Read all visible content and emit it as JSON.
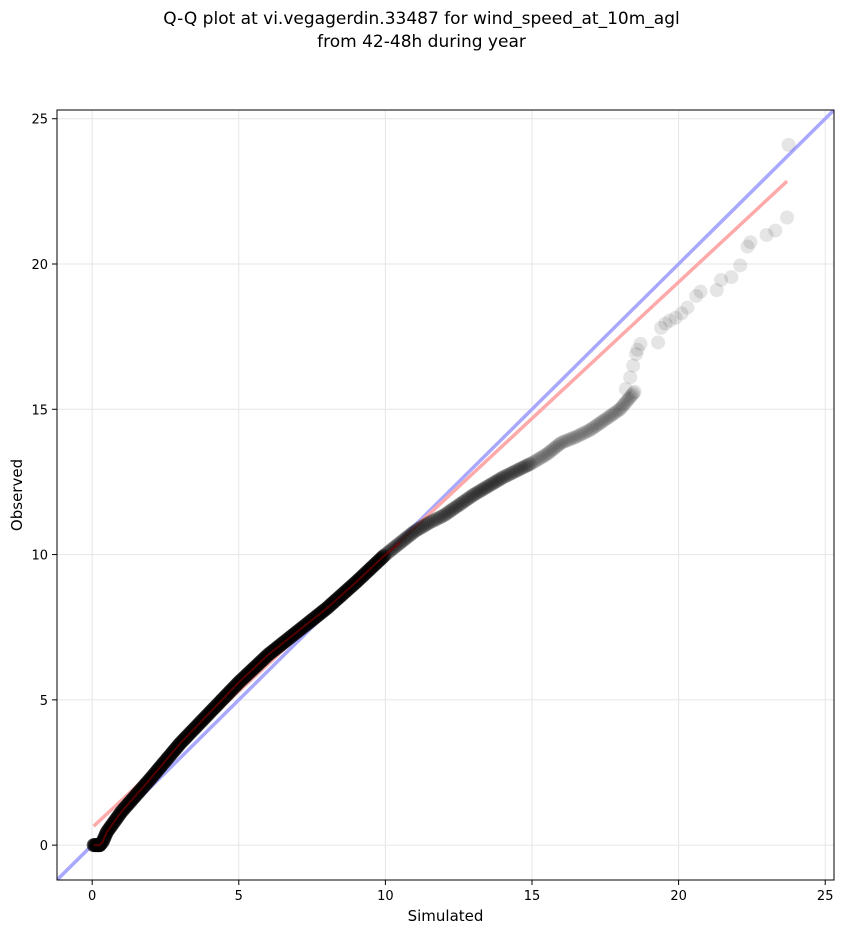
{
  "chart_data": {
    "type": "scatter",
    "title_line1": "Q-Q plot at vi.vegagerdin.33487 for wind_speed_at_10m_agl",
    "title_line2": "from 42-48h during year",
    "xlabel": "Simulated",
    "ylabel": "Observed",
    "xlim": [
      -1.2,
      25.3
    ],
    "ylim": [
      -1.2,
      25.3
    ],
    "xticks": [
      0,
      5,
      10,
      15,
      20,
      25
    ],
    "yticks": [
      0,
      5,
      10,
      15,
      20,
      25
    ],
    "grid": true,
    "colors": {
      "points": "#000000",
      "identity_line": "#a8a8ff",
      "fit_line": "#ffaaaa",
      "dense_points_edge": "#00008b",
      "dense_line": "#8b0000"
    },
    "identity_line": {
      "x": [
        -1.2,
        25.3
      ],
      "y": [
        -1.2,
        25.3
      ]
    },
    "fit_line": {
      "x": [
        0.05,
        23.7
      ],
      "y": [
        0.65,
        22.85
      ]
    },
    "quantile_curve": {
      "x": [
        0.25,
        0.35,
        0.5,
        1,
        2,
        3,
        4,
        5,
        6,
        7,
        8,
        9,
        10,
        10.5,
        11,
        11.5,
        12,
        12.5,
        13,
        13.5,
        14,
        14.5,
        15,
        15.5,
        16,
        16.5,
        17,
        17.5,
        18,
        18.5
      ],
      "y": [
        0,
        0.1,
        0.45,
        1.15,
        2.3,
        3.5,
        4.55,
        5.6,
        6.55,
        7.35,
        8.15,
        9.05,
        10.0,
        10.4,
        10.8,
        11.1,
        11.35,
        11.7,
        12.05,
        12.35,
        12.65,
        12.9,
        13.15,
        13.45,
        13.85,
        14.05,
        14.3,
        14.65,
        15.0,
        15.6
      ]
    },
    "sparse_points": {
      "x": [
        18.2,
        18.35,
        18.45,
        18.55,
        18.6,
        18.7,
        19.3,
        19.4,
        19.55,
        19.7,
        19.9,
        20.1,
        20.3,
        20.6,
        20.75,
        21.3,
        21.45,
        21.8,
        22.1,
        22.35,
        22.45,
        23.0,
        23.3,
        23.7,
        23.75
      ],
      "y": [
        15.7,
        16.1,
        16.5,
        16.9,
        17.05,
        17.25,
        17.3,
        17.8,
        17.95,
        18.05,
        18.15,
        18.3,
        18.5,
        18.9,
        19.05,
        19.1,
        19.45,
        19.55,
        19.95,
        20.6,
        20.75,
        21.0,
        21.15,
        21.6,
        24.1
      ]
    }
  }
}
